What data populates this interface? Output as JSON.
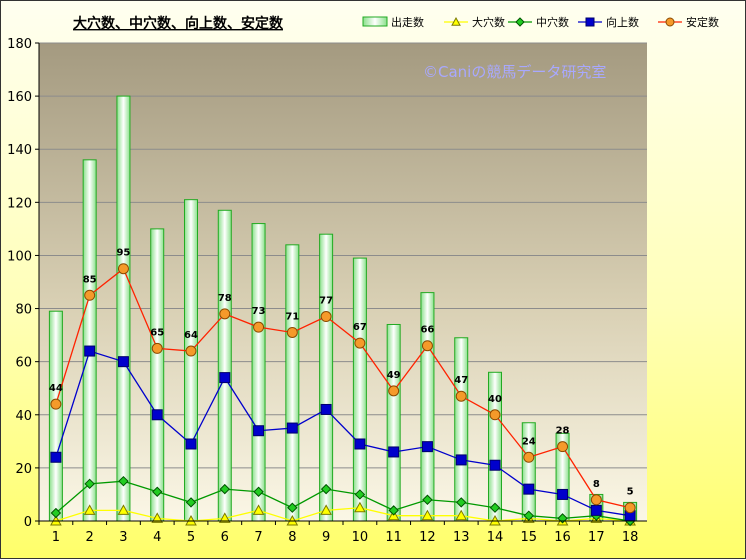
{
  "chart_data": {
    "type": "bar",
    "title": "大穴数、中穴数、向上数、安定数",
    "watermark": "©Caniの競馬データ研究室",
    "categories": [
      "1",
      "2",
      "3",
      "4",
      "5",
      "6",
      "7",
      "8",
      "9",
      "10",
      "11",
      "12",
      "13",
      "14",
      "15",
      "16",
      "17",
      "18"
    ],
    "ylim": [
      0,
      180
    ],
    "yticks": [
      "0",
      "20",
      "40",
      "60",
      "80",
      "100",
      "120",
      "140",
      "160",
      "180"
    ],
    "grid": true,
    "legend": "top-right",
    "series": [
      {
        "name": "出走数",
        "kind": "bar",
        "color": "#22aa22",
        "values": [
          79,
          136,
          160,
          110,
          121,
          117,
          112,
          104,
          108,
          99,
          74,
          86,
          69,
          56,
          37,
          33,
          10,
          7
        ]
      },
      {
        "name": "大穴数",
        "kind": "line",
        "color": "#ffff00",
        "marker": "triangle",
        "values": [
          0,
          4,
          4,
          1,
          0,
          1,
          4,
          0,
          4,
          5,
          2,
          2,
          2,
          0,
          1,
          0,
          1,
          0
        ]
      },
      {
        "name": "中穴数",
        "kind": "line",
        "color": "#009900",
        "marker": "diamond",
        "values": [
          3,
          14,
          15,
          11,
          7,
          12,
          11,
          5,
          12,
          10,
          4,
          8,
          7,
          5,
          2,
          1,
          2,
          0
        ]
      },
      {
        "name": "向上数",
        "kind": "line",
        "color": "#0000cc",
        "marker": "square",
        "values": [
          24,
          64,
          60,
          40,
          29,
          54,
          34,
          35,
          42,
          29,
          26,
          28,
          23,
          21,
          12,
          10,
          4,
          2
        ]
      },
      {
        "name": "安定数",
        "kind": "line",
        "color": "#ff2200",
        "marker": "circle",
        "values": [
          44,
          85,
          95,
          65,
          64,
          78,
          73,
          71,
          77,
          67,
          49,
          66,
          47,
          40,
          24,
          28,
          8,
          5
        ],
        "labels": true
      }
    ]
  }
}
